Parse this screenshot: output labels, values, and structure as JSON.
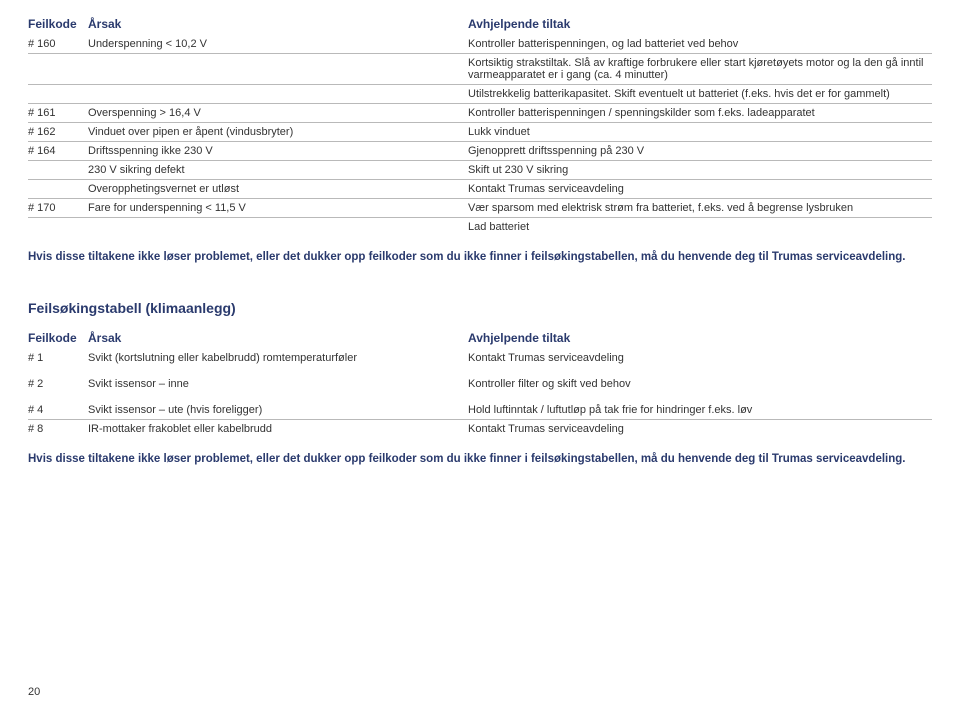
{
  "table1": {
    "headers": {
      "code": "Feilkode",
      "cause": "Årsak",
      "fix": "Avhjelpende tiltak"
    },
    "rows": [
      {
        "code": "# 160",
        "cause": "Underspenning < 10,2 V",
        "fix": "Kontroller batterispenningen, og lad batteriet ved behov",
        "rule": true
      },
      {
        "code": "",
        "cause": "",
        "fix": "Kortsiktig strakstiltak. Slå av kraftige forbrukere eller start kjøretøyets motor og la den gå inntil varmeapparatet er i gang (ca. 4 minutter)",
        "rule": true
      },
      {
        "code": "",
        "cause": "",
        "fix": "Utilstrekkelig batterikapasitet. Skift eventuelt ut batteriet (f.eks. hvis det er for gammelt)",
        "rule": true
      },
      {
        "code": "# 161",
        "cause": "Overspenning > 16,4 V",
        "fix": "Kontroller batterispenningen / spenningskilder som f.eks. ladeapparatet",
        "rule": true
      },
      {
        "code": "# 162",
        "cause": "Vinduet over pipen er åpent (vindusbryter)",
        "fix": "Lukk vinduet",
        "rule": true
      },
      {
        "code": "# 164",
        "cause": "Driftsspenning ikke 230 V",
        "fix": "Gjenopprett driftsspenning på 230 V",
        "rule": true
      },
      {
        "code": "",
        "cause": "230 V sikring defekt",
        "fix": "Skift ut 230 V sikring",
        "rule": true
      },
      {
        "code": "",
        "cause": "Overopphetingsvernet er utløst",
        "fix": "Kontakt Trumas serviceavdeling",
        "rule": true
      },
      {
        "code": "# 170",
        "cause": "Fare for underspenning < 11,5 V",
        "fix": "Vær sparsom med elektrisk strøm fra batteriet, f.eks. ved å begrense lysbruken",
        "rule": true
      },
      {
        "code": "",
        "cause": "",
        "fix": "Lad batteriet",
        "rule": false
      }
    ]
  },
  "note1": "Hvis disse tiltakene ikke løser problemet, eller det dukker opp feilkoder som du ikke finner i feilsøkingstabellen, må du henvende deg til Trumas serviceavdeling.",
  "section2_title": "Feilsøkingstabell (klimaanlegg)",
  "table2": {
    "headers": {
      "code": "Feilkode",
      "cause": "Årsak",
      "fix": "Avhjelpende tiltak"
    },
    "groups": [
      [
        {
          "code": "# 1",
          "cause": "Svikt (kortslutning eller kabelbrudd) romtemperaturføler",
          "fix": "Kontakt Trumas serviceavdeling",
          "rule": false
        }
      ],
      [
        {
          "code": "# 2",
          "cause": "Svikt issensor – inne",
          "fix": "Kontroller filter og skift ved behov",
          "rule": false
        }
      ],
      [
        {
          "code": "# 4",
          "cause": "Svikt issensor – ute (hvis foreligger)",
          "fix": "Hold luftinntak / luftutløp på tak frie for hindringer f.eks. løv",
          "rule": true
        },
        {
          "code": "# 8",
          "cause": "IR-mottaker frakoblet eller kabelbrudd",
          "fix": "Kontakt Trumas serviceavdeling",
          "rule": false
        }
      ]
    ]
  },
  "note2": "Hvis disse tiltakene ikke løser problemet, eller det dukker opp feilkoder som du ikke finner i feilsøkingstabellen, må du henvende deg til Trumas serviceavdeling.",
  "page_number": "20",
  "colors": {
    "heading": "#2a3a6d",
    "text": "#333333",
    "rule": "#b9b9b9",
    "background": "#ffffff"
  }
}
